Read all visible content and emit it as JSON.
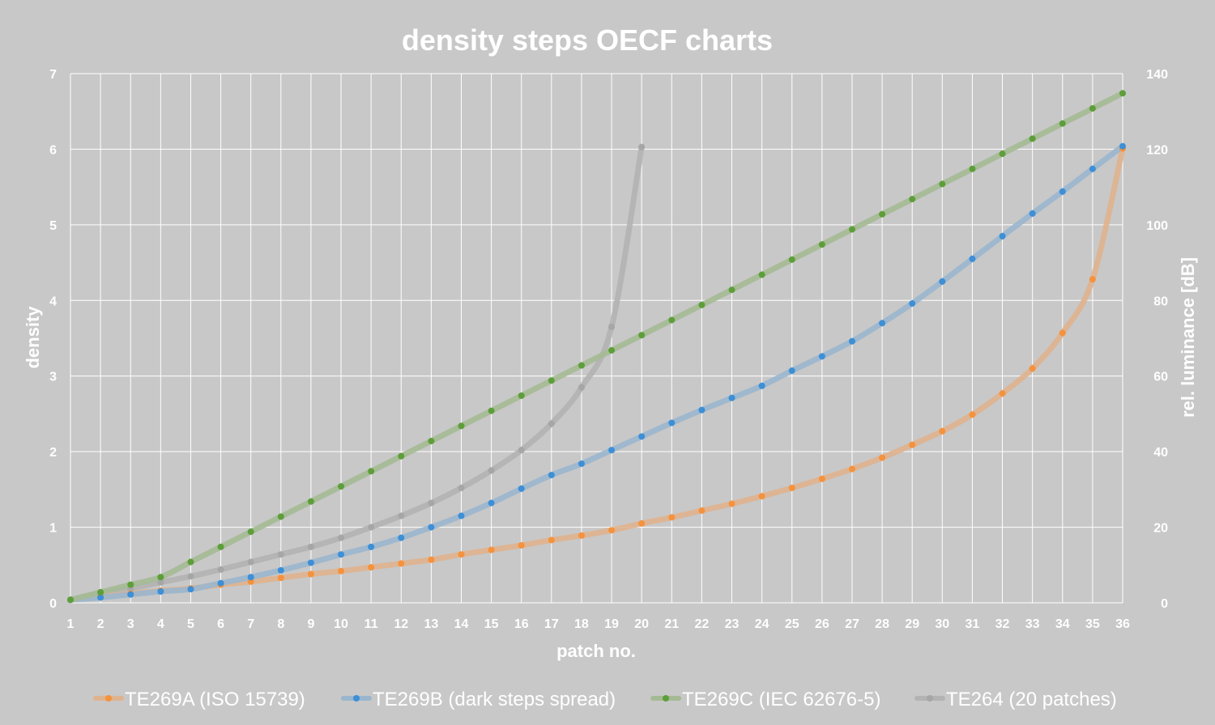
{
  "chart_data": {
    "type": "line",
    "title": "density steps OECF charts",
    "xlabel": "patch no.",
    "ylabel": "density",
    "y2label": "rel. luminance [dB]",
    "xlim": [
      1,
      36
    ],
    "ylim": [
      0,
      7
    ],
    "y2lim": [
      0,
      140
    ],
    "x_ticks": [
      1,
      2,
      3,
      4,
      5,
      6,
      7,
      8,
      9,
      10,
      11,
      12,
      13,
      14,
      15,
      16,
      17,
      18,
      19,
      20,
      21,
      22,
      23,
      24,
      25,
      26,
      27,
      28,
      29,
      30,
      31,
      32,
      33,
      34,
      35,
      36
    ],
    "y_ticks": [
      0,
      1,
      2,
      3,
      4,
      5,
      6,
      7
    ],
    "y2_ticks": [
      0,
      20,
      40,
      60,
      80,
      100,
      120,
      140
    ],
    "grid": true,
    "legend_position": "bottom",
    "series": [
      {
        "name": "TE269A (ISO 15739)",
        "color": "#f5923d",
        "line_color": "#dfb38e",
        "x": [
          1,
          2,
          3,
          4,
          5,
          6,
          7,
          8,
          9,
          10,
          11,
          12,
          13,
          14,
          15,
          16,
          17,
          18,
          19,
          20,
          21,
          22,
          23,
          24,
          25,
          26,
          27,
          28,
          29,
          30,
          31,
          32,
          33,
          34,
          35,
          36
        ],
        "values": [
          0.04,
          0.08,
          0.12,
          0.16,
          0.19,
          0.24,
          0.28,
          0.33,
          0.38,
          0.42,
          0.47,
          0.52,
          0.57,
          0.64,
          0.7,
          0.76,
          0.83,
          0.89,
          0.96,
          1.05,
          1.13,
          1.22,
          1.31,
          1.41,
          1.52,
          1.64,
          1.77,
          1.92,
          2.09,
          2.27,
          2.49,
          2.77,
          3.1,
          3.57,
          4.28,
          6.01
        ]
      },
      {
        "name": "TE269B (dark steps spread)",
        "color": "#3d8fd6",
        "line_color": "#9ab6ce",
        "x": [
          1,
          2,
          3,
          4,
          5,
          6,
          7,
          8,
          9,
          10,
          11,
          12,
          13,
          14,
          15,
          16,
          17,
          18,
          19,
          20,
          21,
          22,
          23,
          24,
          25,
          26,
          27,
          28,
          29,
          30,
          31,
          32,
          33,
          34,
          35,
          36
        ],
        "values": [
          0.04,
          0.07,
          0.11,
          0.15,
          0.18,
          0.26,
          0.34,
          0.43,
          0.53,
          0.64,
          0.74,
          0.86,
          1.0,
          1.15,
          1.32,
          1.51,
          1.69,
          1.84,
          2.02,
          2.2,
          2.38,
          2.55,
          2.71,
          2.87,
          3.07,
          3.26,
          3.46,
          3.7,
          3.96,
          4.25,
          4.55,
          4.85,
          5.15,
          5.44,
          5.74,
          6.04
        ]
      },
      {
        "name": "TE269C (IEC 62676-5)",
        "color": "#5e9e3a",
        "line_color": "#a4ba94",
        "x": [
          1,
          2,
          3,
          4,
          5,
          6,
          7,
          8,
          9,
          10,
          11,
          12,
          13,
          14,
          15,
          16,
          17,
          18,
          19,
          20,
          21,
          22,
          23,
          24,
          25,
          26,
          27,
          28,
          29,
          30,
          31,
          32,
          33,
          34,
          35,
          36
        ],
        "values": [
          0.04,
          0.14,
          0.24,
          0.34,
          0.54,
          0.74,
          0.94,
          1.14,
          1.34,
          1.54,
          1.74,
          1.94,
          2.14,
          2.34,
          2.54,
          2.74,
          2.94,
          3.14,
          3.34,
          3.54,
          3.74,
          3.94,
          4.14,
          4.34,
          4.54,
          4.74,
          4.94,
          5.14,
          5.34,
          5.54,
          5.74,
          5.94,
          6.14,
          6.34,
          6.54,
          6.74
        ]
      },
      {
        "name": "TE264 (20 patches)",
        "color": "#a6a6a6",
        "line_color": "#b3b3b3",
        "x": [
          1,
          2,
          3,
          4,
          5,
          6,
          7,
          8,
          9,
          10,
          11,
          12,
          13,
          14,
          15,
          16,
          17,
          18,
          19,
          20
        ],
        "values": [
          0.04,
          0.12,
          0.19,
          0.27,
          0.35,
          0.44,
          0.54,
          0.64,
          0.74,
          0.86,
          1.0,
          1.15,
          1.32,
          1.52,
          1.75,
          2.02,
          2.37,
          2.85,
          3.65,
          6.03
        ]
      }
    ]
  }
}
